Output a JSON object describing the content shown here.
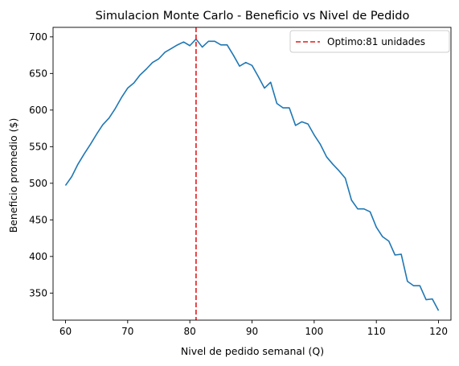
{
  "chart_data": {
    "type": "line",
    "title": "Simulacion Monte Carlo - Beneficio vs Nivel de Pedido",
    "xlabel": "Nivel de pedido semanal (Q)",
    "ylabel": "Beneficio promedio ($)",
    "xlim": [
      58,
      122
    ],
    "ylim": [
      313,
      713
    ],
    "xticks": [
      60,
      70,
      80,
      90,
      100,
      110,
      120
    ],
    "yticks": [
      350,
      400,
      450,
      500,
      550,
      600,
      650,
      700
    ],
    "grid": false,
    "legend_position": "top-right",
    "series": [
      {
        "color": "#1f77b4",
        "x": [
          60,
          61,
          62,
          63,
          64,
          65,
          66,
          67,
          68,
          69,
          70,
          71,
          72,
          73,
          74,
          75,
          76,
          77,
          78,
          79,
          80,
          81,
          82,
          83,
          84,
          85,
          86,
          87,
          88,
          89,
          90,
          91,
          92,
          93,
          94,
          95,
          96,
          97,
          98,
          99,
          100,
          101,
          102,
          103,
          104,
          105,
          106,
          107,
          108,
          109,
          110,
          111,
          112,
          113,
          114,
          115,
          116,
          117,
          118,
          119,
          120
        ],
        "values": [
          497,
          509,
          526,
          540,
          553,
          567,
          580,
          589,
          602,
          617,
          630,
          637,
          648,
          656,
          665,
          670,
          679,
          684,
          689,
          693,
          688,
          697,
          686,
          694,
          694,
          689,
          689,
          675,
          660,
          665,
          661,
          646,
          630,
          638,
          609,
          603,
          603,
          579,
          584,
          581,
          566,
          553,
          536,
          526,
          517,
          507,
          477,
          465,
          465,
          461,
          440,
          427,
          421,
          402,
          403,
          366,
          360,
          360,
          341,
          342,
          326
        ]
      }
    ],
    "reference_lines": [
      {
        "orientation": "vertical",
        "x": 81,
        "label": "Optimo:81 unidades",
        "color": "#e31a1c",
        "style": "dashed"
      }
    ]
  }
}
